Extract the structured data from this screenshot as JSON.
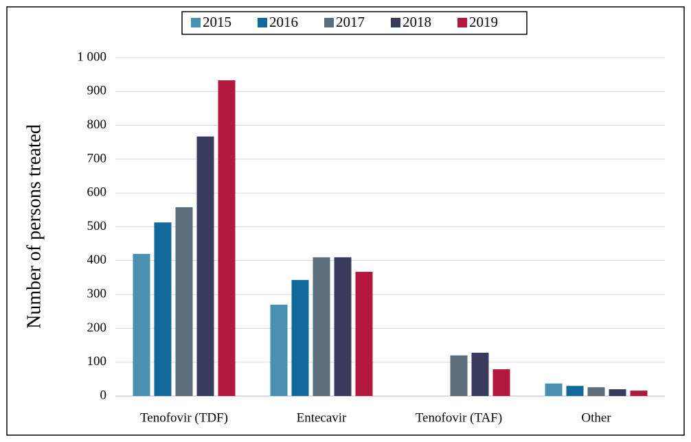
{
  "chart_data": {
    "type": "bar",
    "y_axis_label": "Number of persons treated",
    "categories": [
      "Tenofovir (TDF)",
      "Entecavir",
      "Tenofovir (TAF)",
      "Other"
    ],
    "series": [
      {
        "name": "2015",
        "color": "#4a91b1",
        "values": [
          420,
          270,
          null,
          37
        ]
      },
      {
        "name": "2016",
        "color": "#10699a",
        "values": [
          513,
          343,
          null,
          30
        ]
      },
      {
        "name": "2017",
        "color": "#5a6d79",
        "values": [
          558,
          410,
          120,
          26
        ]
      },
      {
        "name": "2018",
        "color": "#383b5d",
        "values": [
          767,
          410,
          128,
          20
        ]
      },
      {
        "name": "2019",
        "color": "#b3173f",
        "values": [
          933,
          367,
          79,
          16
        ]
      }
    ],
    "ylim": [
      0,
      1000
    ],
    "yticks": [
      0,
      100,
      200,
      300,
      400,
      500,
      600,
      700,
      800,
      900,
      {
        "value": 1000,
        "label": "1 000"
      }
    ],
    "grid": true,
    "legend": "top"
  }
}
